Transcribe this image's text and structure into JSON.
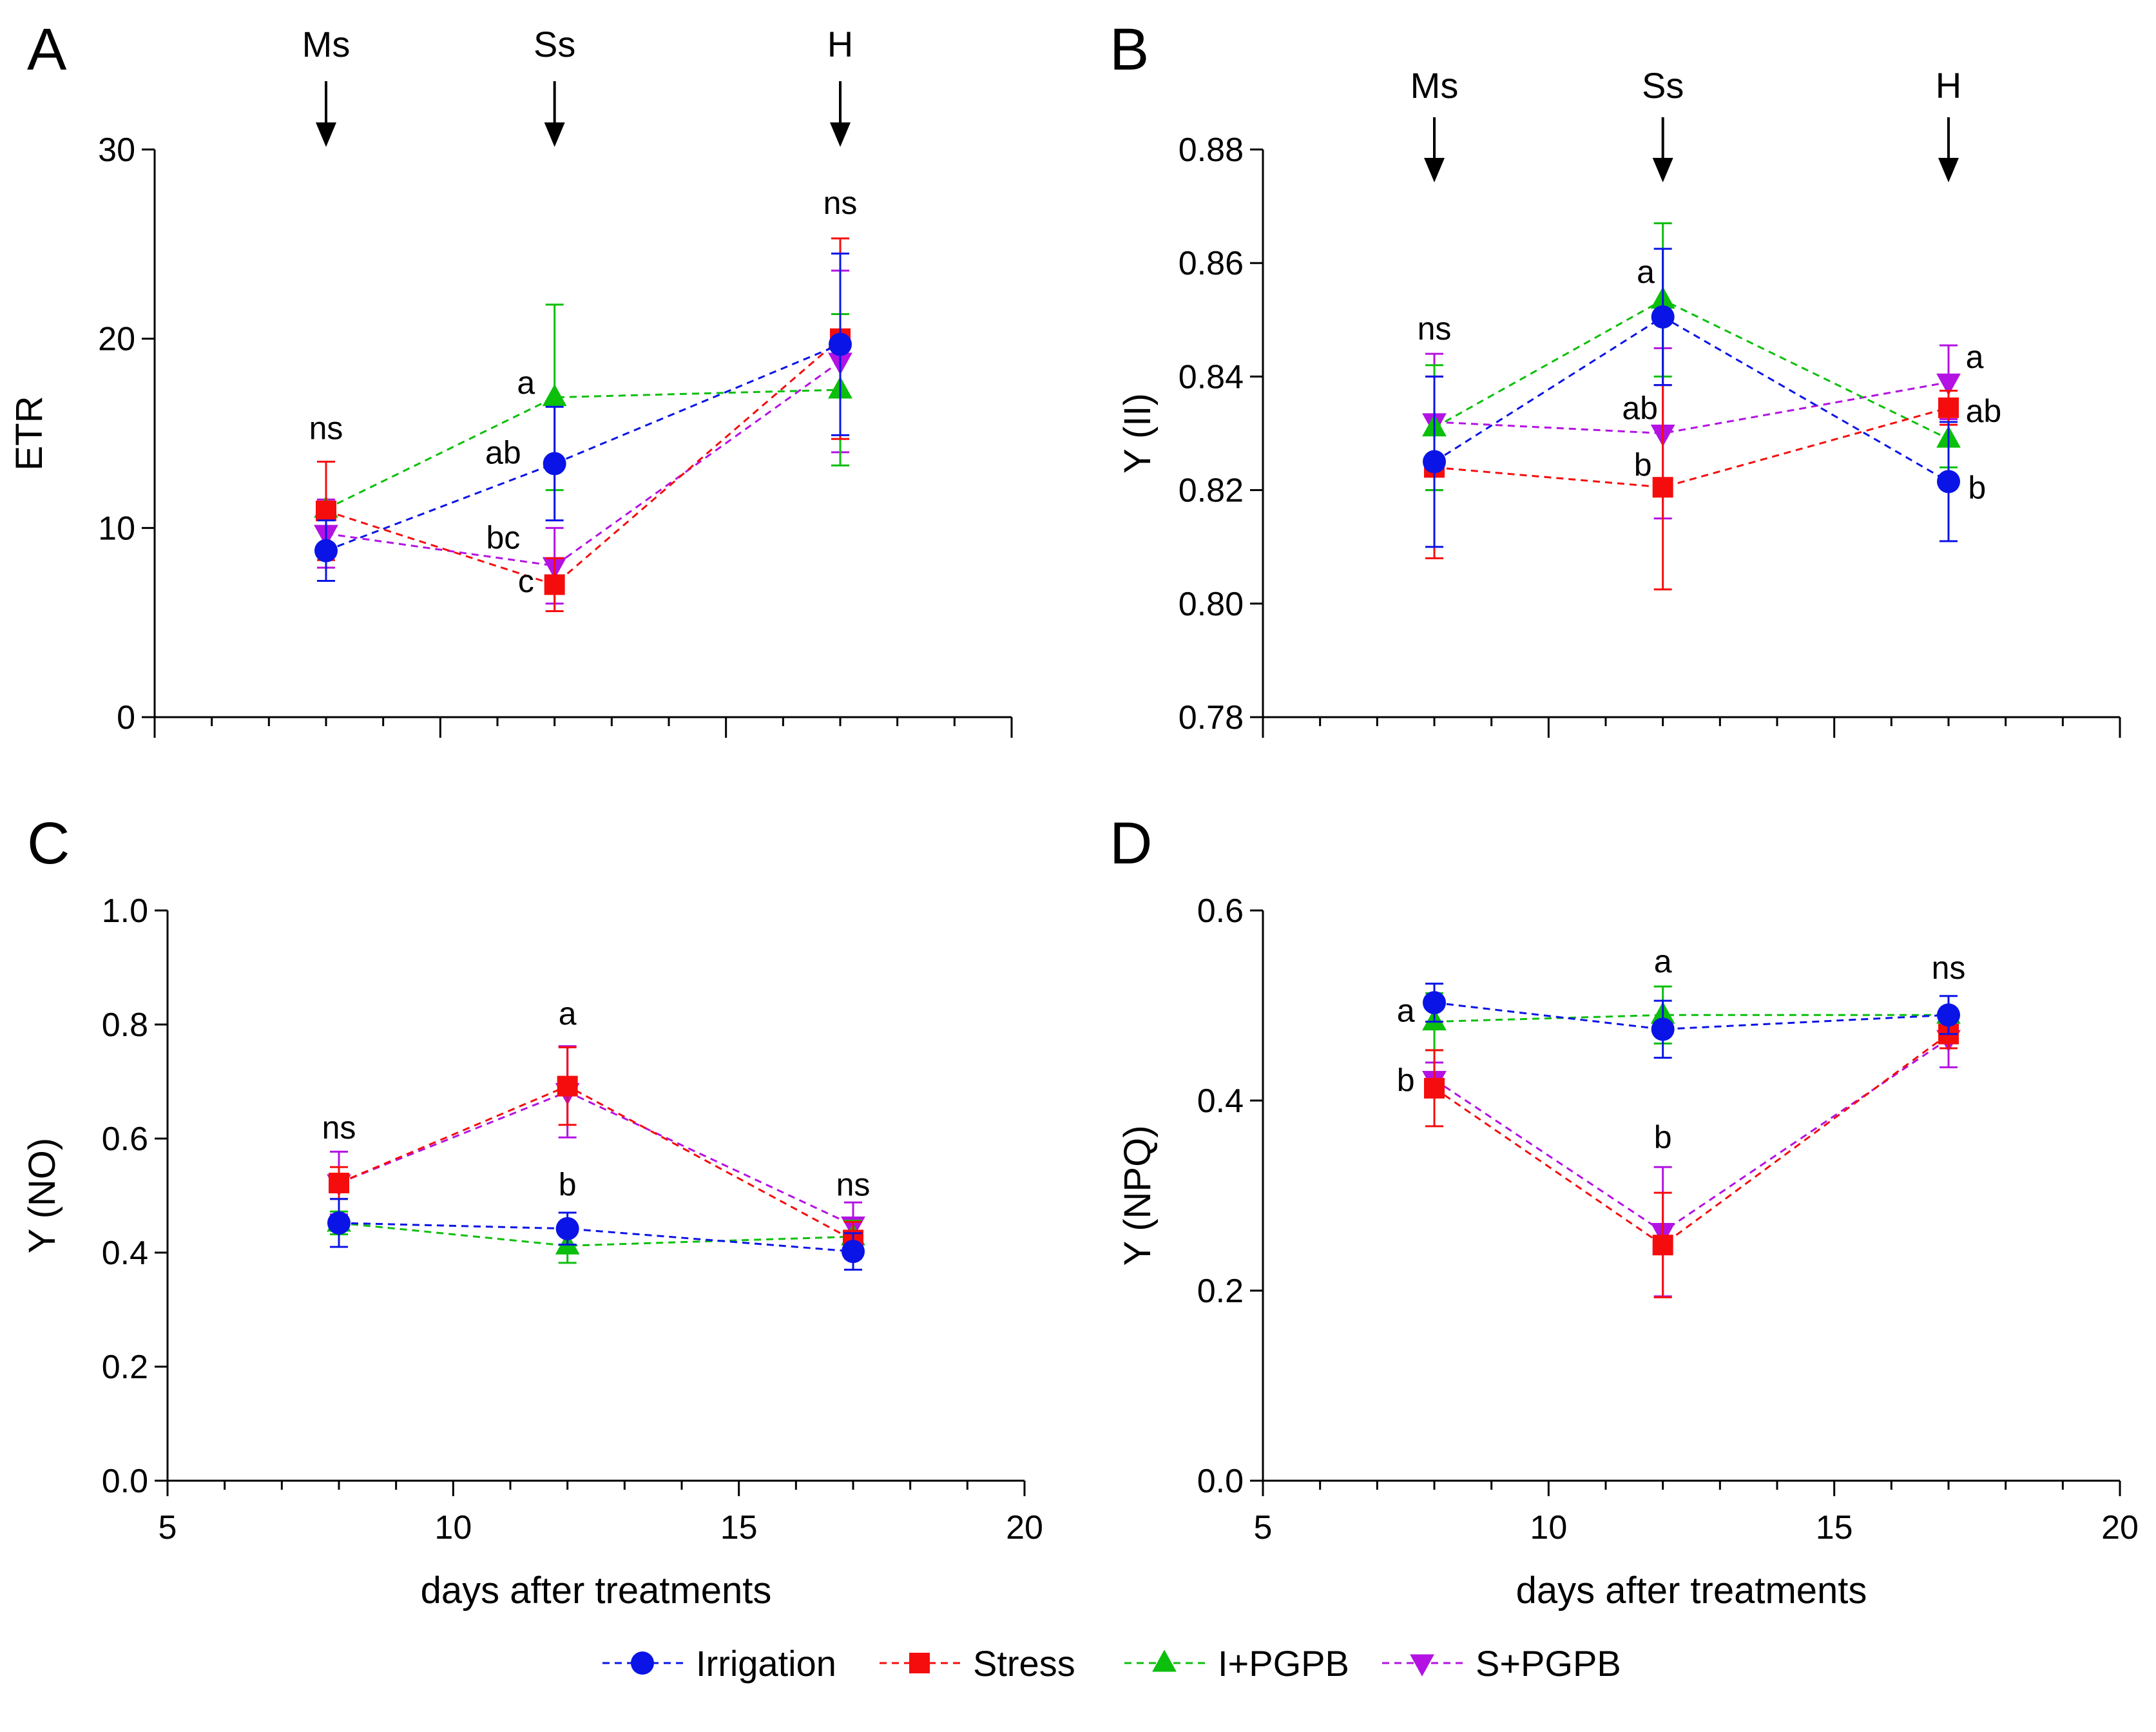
{
  "colors": {
    "Irrigation": "#0a14e6",
    "Stress": "#f50d0d",
    "I+PGPB": "#0cbf0c",
    "S+PGPB": "#b312e3"
  },
  "legend": [
    {
      "name": "Irrigation",
      "marker": "circle"
    },
    {
      "name": "Stress",
      "marker": "square"
    },
    {
      "name": "I+PGPB",
      "marker": "triangle-up"
    },
    {
      "name": "S+PGPB",
      "marker": "triangle-down"
    }
  ],
  "chart_data": [
    {
      "id": "A",
      "letter": "A",
      "type": "line",
      "xlabel": "",
      "ylabel": "ETR",
      "xlim": [
        5,
        20
      ],
      "ylim": [
        0,
        30
      ],
      "yticks": [
        0,
        10,
        20,
        30
      ],
      "ytick_labels": [
        "0",
        "10",
        "20",
        "30"
      ],
      "xticks": [],
      "xtick_labels": [],
      "x": [
        8,
        12,
        17
      ],
      "series": [
        {
          "name": "Irrigation",
          "values": [
            8.8,
            13.4,
            19.7
          ],
          "err": [
            1.6,
            3.0,
            4.8
          ]
        },
        {
          "name": "Stress",
          "values": [
            10.9,
            7.0,
            20.0
          ],
          "err": [
            2.6,
            1.4,
            5.3
          ]
        },
        {
          "name": "I+PGPB",
          "values": [
            11.0,
            16.9,
            17.3
          ],
          "err": [
            2.5,
            4.9,
            4.0
          ]
        },
        {
          "name": "S+PGPB",
          "values": [
            9.7,
            8.0,
            18.8
          ],
          "err": [
            1.8,
            2.0,
            4.8
          ]
        }
      ],
      "arrows": [
        {
          "label": "Ms",
          "x": 8
        },
        {
          "label": "Ss",
          "x": 12
        },
        {
          "label": "H",
          "x": 17
        }
      ],
      "annotations": [
        {
          "text": "ns",
          "x": 8,
          "y": 14.7,
          "anchor": "middle"
        },
        {
          "text": "a",
          "x": 11.5,
          "y": 17.1,
          "anchor": "middle"
        },
        {
          "text": "ab",
          "x": 11.1,
          "y": 13.4,
          "anchor": "middle"
        },
        {
          "text": "bc",
          "x": 11.1,
          "y": 8.9,
          "anchor": "middle"
        },
        {
          "text": "c",
          "x": 11.5,
          "y": 6.6,
          "anchor": "middle"
        },
        {
          "text": "ns",
          "x": 17,
          "y": 26.6,
          "anchor": "middle"
        }
      ]
    },
    {
      "id": "B",
      "letter": "B",
      "type": "line",
      "xlabel": "",
      "ylabel": "Y (II)",
      "xlim": [
        5,
        20
      ],
      "ylim": [
        0.78,
        0.88
      ],
      "yticks": [
        0.78,
        0.8,
        0.82,
        0.84,
        0.86,
        0.88
      ],
      "ytick_labels": [
        "0.78",
        "0.80",
        "0.82",
        "0.84",
        "0.86",
        "0.88"
      ],
      "xticks": [],
      "xtick_labels": [],
      "x": [
        8,
        12,
        17
      ],
      "series": [
        {
          "name": "Irrigation",
          "values": [
            0.825,
            0.8505,
            0.8215
          ],
          "err": [
            0.015,
            0.012,
            0.0105
          ]
        },
        {
          "name": "Stress",
          "values": [
            0.824,
            0.8205,
            0.8345
          ],
          "err": [
            0.016,
            0.018,
            0.003
          ]
        },
        {
          "name": "I+PGPB",
          "values": [
            0.831,
            0.8535,
            0.829
          ],
          "err": [
            0.011,
            0.0135,
            0.005
          ]
        },
        {
          "name": "S+PGPB",
          "values": [
            0.832,
            0.83,
            0.839
          ],
          "err": [
            0.012,
            0.015,
            0.0065
          ]
        }
      ],
      "arrows": [
        {
          "label": "Ms",
          "x": 8
        },
        {
          "label": "Ss",
          "x": 12
        },
        {
          "label": "H",
          "x": 17
        }
      ],
      "annotations": [
        {
          "text": "ns",
          "x": 8,
          "y": 0.8465,
          "anchor": "middle"
        },
        {
          "text": "a",
          "x": 11.7,
          "y": 0.8565,
          "anchor": "middle"
        },
        {
          "text": "ab",
          "x": 11.6,
          "y": 0.8325,
          "anchor": "middle"
        },
        {
          "text": "b",
          "x": 11.65,
          "y": 0.8225,
          "anchor": "middle"
        },
        {
          "text": "a",
          "x": 17.3,
          "y": 0.8415,
          "anchor": "start"
        },
        {
          "text": "ab",
          "x": 17.3,
          "y": 0.832,
          "anchor": "start"
        },
        {
          "text": "b",
          "x": 17.5,
          "y": 0.8185,
          "anchor": "middle"
        }
      ]
    },
    {
      "id": "C",
      "letter": "C",
      "type": "line",
      "xlabel": "days after treatments",
      "ylabel": "Y (NO)",
      "xlim": [
        5,
        20
      ],
      "ylim": [
        0,
        1
      ],
      "yticks": [
        0,
        0.2,
        0.4,
        0.6,
        0.8,
        1.0
      ],
      "ytick_labels": [
        "0.0",
        "0.2",
        "0.4",
        "0.6",
        "0.8",
        "1.0"
      ],
      "xticks": [
        5,
        10,
        15,
        20
      ],
      "xtick_labels": [
        "5",
        "10",
        "15",
        "20"
      ],
      "x": [
        8,
        12,
        17
      ],
      "series": [
        {
          "name": "Irrigation",
          "values": [
            0.452,
            0.442,
            0.402
          ],
          "err": [
            0.042,
            0.028,
            0.032
          ]
        },
        {
          "name": "Stress",
          "values": [
            0.522,
            0.692,
            0.422
          ],
          "err": [
            0.028,
            0.068,
            0.032
          ]
        },
        {
          "name": "I+PGPB",
          "values": [
            0.452,
            0.412,
            0.428
          ],
          "err": [
            0.02,
            0.03,
            0.028
          ]
        },
        {
          "name": "S+PGPB",
          "values": [
            0.522,
            0.682,
            0.448
          ],
          "err": [
            0.055,
            0.08,
            0.04
          ]
        }
      ],
      "arrows": [],
      "annotations": [
        {
          "text": "ns",
          "x": 8,
          "y": 0.6,
          "anchor": "middle"
        },
        {
          "text": "a",
          "x": 12,
          "y": 0.8,
          "anchor": "middle"
        },
        {
          "text": "b",
          "x": 12,
          "y": 0.5,
          "anchor": "middle"
        },
        {
          "text": "ns",
          "x": 17,
          "y": 0.5,
          "anchor": "middle"
        }
      ]
    },
    {
      "id": "D",
      "letter": "D",
      "type": "line",
      "xlabel": "days after treatments",
      "ylabel": "Y (NPQ)",
      "xlim": [
        5,
        20
      ],
      "ylim": [
        0,
        0.6
      ],
      "yticks": [
        0,
        0.2,
        0.4,
        0.6
      ],
      "ytick_labels": [
        "0.0",
        "0.2",
        "0.4",
        "0.6"
      ],
      "xticks": [
        5,
        10,
        15,
        20
      ],
      "xtick_labels": [
        "5",
        "10",
        "15",
        "20"
      ],
      "x": [
        8,
        12,
        17
      ],
      "series": [
        {
          "name": "Irrigation",
          "values": [
            0.503,
            0.475,
            0.49
          ],
          "err": [
            0.02,
            0.03,
            0.02
          ]
        },
        {
          "name": "Stress",
          "values": [
            0.413,
            0.248,
            0.47
          ],
          "err": [
            0.04,
            0.055,
            0.015
          ]
        },
        {
          "name": "I+PGPB",
          "values": [
            0.483,
            0.49,
            0.49
          ],
          "err": [
            0.03,
            0.03,
            0.005
          ]
        },
        {
          "name": "S+PGPB",
          "values": [
            0.422,
            0.262,
            0.465
          ],
          "err": [
            0.018,
            0.068,
            0.03
          ]
        }
      ],
      "arrows": [],
      "annotations": [
        {
          "text": "a",
          "x": 7.5,
          "y": 0.483,
          "anchor": "middle"
        },
        {
          "text": "b",
          "x": 7.5,
          "y": 0.41,
          "anchor": "middle"
        },
        {
          "text": "a",
          "x": 12,
          "y": 0.535,
          "anchor": "middle"
        },
        {
          "text": "b",
          "x": 12,
          "y": 0.35,
          "anchor": "middle"
        },
        {
          "text": "ns",
          "x": 17,
          "y": 0.528,
          "anchor": "middle"
        }
      ]
    }
  ]
}
